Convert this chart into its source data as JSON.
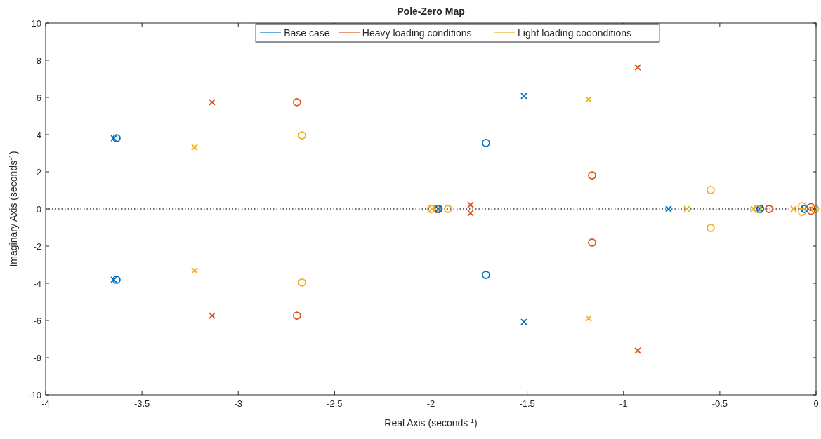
{
  "chart_data": {
    "type": "scatter",
    "title": "Pole-Zero Map",
    "xlabel": "Real Axis (seconds$^{-1}$)",
    "ylabel": "Imaginary Axis (seconds$^{-1}$)",
    "xlim": [
      -4,
      0
    ],
    "ylim": [
      -10,
      10
    ],
    "xticks": [
      -4,
      -3.5,
      -3,
      -2.5,
      -2,
      -1.5,
      -1,
      -0.5,
      0
    ],
    "yticks": [
      -10,
      -8,
      -6,
      -4,
      -2,
      0,
      2,
      4,
      6,
      8,
      10
    ],
    "grid": false,
    "legend": "top",
    "ref_lines": [
      {
        "axis": "y",
        "value": 0,
        "color": "#404040",
        "line_style": "dotted"
      }
    ],
    "series": [
      {
        "name": "Base case",
        "color": "#0072bd",
        "marker": "cross",
        "x": [
          -3.646,
          -3.646,
          -1.517,
          -1.517,
          -0.766,
          -1.962,
          -0.29,
          -0.062
        ],
        "values": [
          3.81,
          -3.81,
          6.08,
          -6.08,
          0,
          0,
          0,
          0
        ]
      },
      {
        "color": "#0072bd",
        "marker": "circle",
        "x": [
          -3.632,
          -3.632,
          -1.714,
          -1.714,
          -1.96,
          -0.29,
          -0.06
        ],
        "values": [
          3.81,
          -3.81,
          3.55,
          -3.55,
          0,
          0,
          0
        ]
      },
      {
        "name": "Heavy loading conditions",
        "color": "#d95319",
        "marker": "cross",
        "x": [
          -3.136,
          -3.136,
          -0.926,
          -0.926,
          -1.794,
          -1.794
        ],
        "values": [
          5.74,
          -5.74,
          7.62,
          -7.62,
          0.22,
          -0.22
        ]
      },
      {
        "color": "#d95319",
        "marker": "circle",
        "x": [
          -2.695,
          -2.695,
          -1.163,
          -1.163,
          -1.97,
          -0.244,
          -0.026,
          -0.026
        ],
        "values": [
          5.74,
          -5.74,
          1.81,
          -1.81,
          0,
          0,
          0.1,
          -0.1
        ]
      },
      {
        "name": "Light loading cooonditions",
        "color": "#edb120",
        "marker": "cross",
        "x": [
          -3.227,
          -3.227,
          -1.181,
          -1.181,
          -0.671,
          -1.995,
          -0.325,
          -0.117
        ],
        "values": [
          3.32,
          -3.32,
          5.89,
          -5.89,
          0,
          0,
          0,
          0
        ]
      },
      {
        "color": "#edb120",
        "marker": "circle",
        "x": [
          -2.669,
          -2.669,
          -0.547,
          -0.547,
          -1.911,
          -2.0,
          -0.306,
          -0.073,
          -0.073,
          -0.005
        ],
        "values": [
          3.96,
          -3.96,
          1.02,
          -1.02,
          0,
          0,
          0,
          0.15,
          -0.15,
          0
        ]
      }
    ]
  }
}
